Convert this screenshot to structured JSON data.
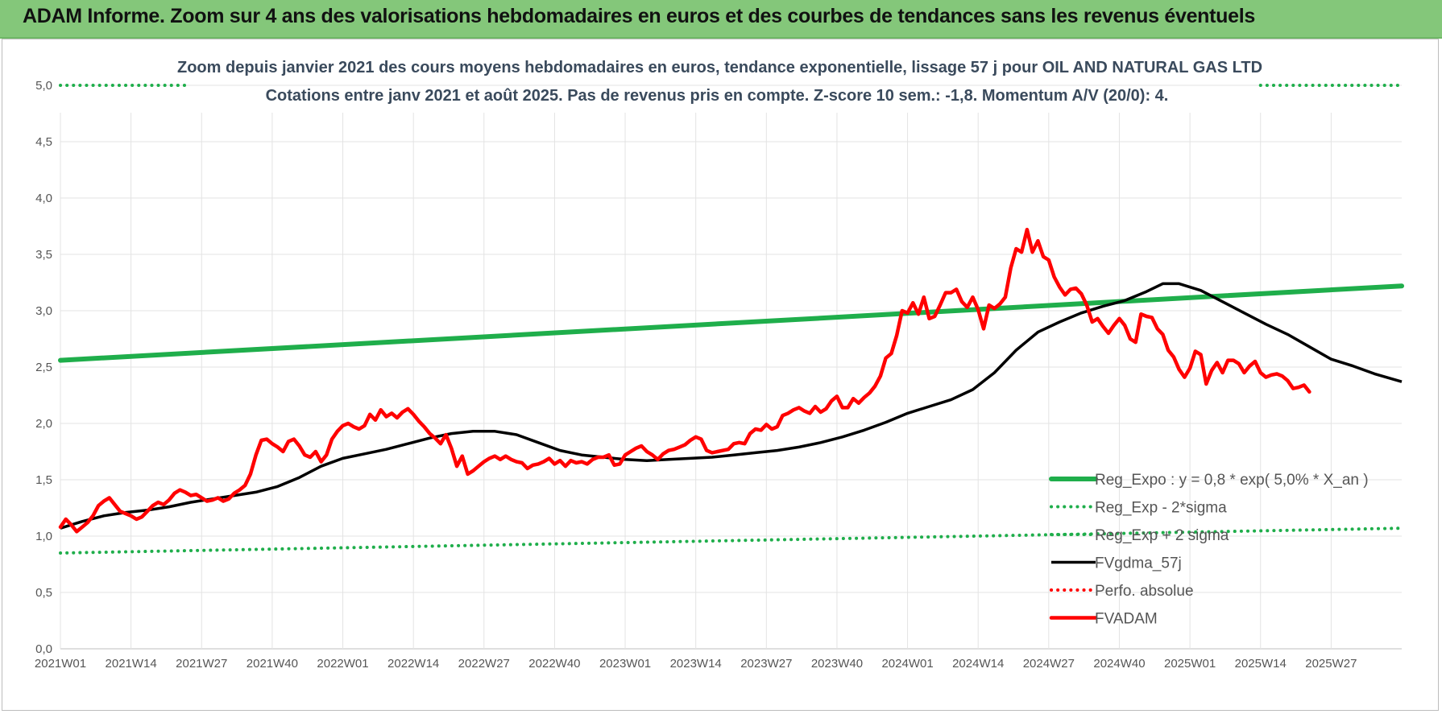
{
  "header": {
    "title": "ADAM Informe. Zoom sur 4 ans des valorisations hebdomadaires en euros et des courbes de tendances sans les revenus éventuels"
  },
  "chart_data": {
    "type": "line",
    "title": "Zoom depuis janvier 2021 des cours moyens hebdomadaires en euros, tendance exponentielle, lissage 57 j pour OIL AND NATURAL GAS LTD",
    "subtitle": "Cotations entre janv 2021 et août 2025.  Pas de revenus pris en compte. Z-score 10 sem.: -1,8. Momentum A/V (20/0): 4.",
    "ylim": [
      0,
      5
    ],
    "y_ticks": [
      "0,0",
      "0,5",
      "1,0",
      "1,5",
      "2,0",
      "2,5",
      "3,0",
      "3,5",
      "4,0",
      "4,5",
      "5,0"
    ],
    "x_ticks": [
      "2021W01",
      "2021W14",
      "2021W27",
      "2021W40",
      "2022W01",
      "2022W14",
      "2022W27",
      "2022W40",
      "2023W01",
      "2023W14",
      "2023W27",
      "2023W40",
      "2024W01",
      "2024W14",
      "2024W27",
      "2024W40",
      "2025W01",
      "2025W14",
      "2025W27"
    ],
    "grid": true,
    "legend_position": "bottom-right",
    "series": [
      {
        "name": "Reg_Expo : y = 0,8 * exp( 5,0% *  X_an )",
        "color": "#1fae4b",
        "style": "solid-thick",
        "points": [
          [
            0,
            2.56
          ],
          [
            247,
            3.22
          ]
        ]
      },
      {
        "name": "Reg_Exp - 2*sigma",
        "color": "#1fae4b",
        "style": "dotted",
        "points": [
          [
            0,
            0.85
          ],
          [
            247,
            1.07
          ]
        ]
      },
      {
        "name": "Reg_Exp + 2 sigma",
        "color": "#1fae4b",
        "style": "dotted",
        "points": [
          [
            0,
            5.0
          ],
          [
            23,
            5.0
          ],
          [
            221,
            5.0
          ],
          [
            247,
            5.0
          ]
        ]
      },
      {
        "name": "FVgdma_57j",
        "color": "#000000",
        "style": "solid",
        "points": [
          [
            0,
            1.07
          ],
          [
            4,
            1.13
          ],
          [
            8,
            1.18
          ],
          [
            12,
            1.21
          ],
          [
            16,
            1.23
          ],
          [
            20,
            1.26
          ],
          [
            24,
            1.3
          ],
          [
            28,
            1.33
          ],
          [
            32,
            1.36
          ],
          [
            36,
            1.39
          ],
          [
            40,
            1.44
          ],
          [
            44,
            1.52
          ],
          [
            48,
            1.62
          ],
          [
            52,
            1.69
          ],
          [
            56,
            1.73
          ],
          [
            60,
            1.77
          ],
          [
            64,
            1.82
          ],
          [
            68,
            1.87
          ],
          [
            72,
            1.91
          ],
          [
            76,
            1.93
          ],
          [
            80,
            1.93
          ],
          [
            84,
            1.9
          ],
          [
            88,
            1.83
          ],
          [
            92,
            1.76
          ],
          [
            96,
            1.72
          ],
          [
            100,
            1.7
          ],
          [
            104,
            1.68
          ],
          [
            108,
            1.67
          ],
          [
            112,
            1.68
          ],
          [
            116,
            1.69
          ],
          [
            120,
            1.7
          ],
          [
            124,
            1.72
          ],
          [
            128,
            1.74
          ],
          [
            132,
            1.76
          ],
          [
            136,
            1.79
          ],
          [
            140,
            1.83
          ],
          [
            144,
            1.88
          ],
          [
            148,
            1.94
          ],
          [
            152,
            2.01
          ],
          [
            156,
            2.09
          ],
          [
            160,
            2.15
          ],
          [
            164,
            2.21
          ],
          [
            168,
            2.3
          ],
          [
            172,
            2.45
          ],
          [
            176,
            2.65
          ],
          [
            180,
            2.81
          ],
          [
            184,
            2.9
          ],
          [
            188,
            2.98
          ],
          [
            192,
            3.04
          ],
          [
            196,
            3.09
          ],
          [
            200,
            3.17
          ],
          [
            203,
            3.24
          ],
          [
            206,
            3.24
          ],
          [
            210,
            3.18
          ],
          [
            214,
            3.08
          ],
          [
            218,
            2.98
          ],
          [
            222,
            2.88
          ],
          [
            226,
            2.79
          ],
          [
            230,
            2.68
          ],
          [
            234,
            2.57
          ],
          [
            238,
            2.51
          ],
          [
            242,
            2.44
          ],
          [
            247,
            2.37
          ]
        ]
      },
      {
        "name": "Perfo. absolue",
        "color": "#ff0000",
        "style": "dotted",
        "points": []
      },
      {
        "name": "FVADAM",
        "color": "#ff0000",
        "style": "solid-thick",
        "points": [
          [
            0,
            1.08
          ],
          [
            1,
            1.15
          ],
          [
            2,
            1.1
          ],
          [
            3,
            1.04
          ],
          [
            4,
            1.08
          ],
          [
            5,
            1.12
          ],
          [
            6,
            1.18
          ],
          [
            7,
            1.27
          ],
          [
            8,
            1.31
          ],
          [
            9,
            1.34
          ],
          [
            10,
            1.28
          ],
          [
            11,
            1.22
          ],
          [
            12,
            1.2
          ],
          [
            13,
            1.18
          ],
          [
            14,
            1.15
          ],
          [
            15,
            1.17
          ],
          [
            16,
            1.22
          ],
          [
            17,
            1.27
          ],
          [
            18,
            1.3
          ],
          [
            19,
            1.28
          ],
          [
            20,
            1.32
          ],
          [
            21,
            1.38
          ],
          [
            22,
            1.41
          ],
          [
            23,
            1.39
          ],
          [
            24,
            1.36
          ],
          [
            25,
            1.37
          ],
          [
            26,
            1.34
          ],
          [
            27,
            1.31
          ],
          [
            28,
            1.32
          ],
          [
            29,
            1.34
          ],
          [
            30,
            1.31
          ],
          [
            31,
            1.33
          ],
          [
            32,
            1.38
          ],
          [
            33,
            1.41
          ],
          [
            34,
            1.45
          ],
          [
            35,
            1.55
          ],
          [
            36,
            1.72
          ],
          [
            37,
            1.85
          ],
          [
            38,
            1.86
          ],
          [
            39,
            1.82
          ],
          [
            40,
            1.79
          ],
          [
            41,
            1.75
          ],
          [
            42,
            1.84
          ],
          [
            43,
            1.86
          ],
          [
            44,
            1.8
          ],
          [
            45,
            1.72
          ],
          [
            46,
            1.7
          ],
          [
            47,
            1.75
          ],
          [
            48,
            1.66
          ],
          [
            49,
            1.72
          ],
          [
            50,
            1.86
          ],
          [
            51,
            1.93
          ],
          [
            52,
            1.98
          ],
          [
            53,
            2.0
          ],
          [
            54,
            1.97
          ],
          [
            55,
            1.95
          ],
          [
            56,
            1.98
          ],
          [
            57,
            2.08
          ],
          [
            58,
            2.03
          ],
          [
            59,
            2.12
          ],
          [
            60,
            2.06
          ],
          [
            61,
            2.09
          ],
          [
            62,
            2.05
          ],
          [
            63,
            2.1
          ],
          [
            64,
            2.13
          ],
          [
            65,
            2.08
          ],
          [
            66,
            2.02
          ],
          [
            67,
            1.97
          ],
          [
            68,
            1.91
          ],
          [
            69,
            1.87
          ],
          [
            70,
            1.82
          ],
          [
            71,
            1.9
          ],
          [
            72,
            1.78
          ],
          [
            73,
            1.62
          ],
          [
            74,
            1.71
          ],
          [
            75,
            1.55
          ],
          [
            76,
            1.58
          ],
          [
            77,
            1.62
          ],
          [
            78,
            1.66
          ],
          [
            79,
            1.69
          ],
          [
            80,
            1.71
          ],
          [
            81,
            1.68
          ],
          [
            82,
            1.71
          ],
          [
            83,
            1.68
          ],
          [
            84,
            1.66
          ],
          [
            85,
            1.65
          ],
          [
            86,
            1.6
          ],
          [
            87,
            1.63
          ],
          [
            88,
            1.64
          ],
          [
            89,
            1.66
          ],
          [
            90,
            1.69
          ],
          [
            91,
            1.64
          ],
          [
            92,
            1.67
          ],
          [
            93,
            1.62
          ],
          [
            94,
            1.67
          ],
          [
            95,
            1.65
          ],
          [
            96,
            1.66
          ],
          [
            97,
            1.64
          ],
          [
            98,
            1.68
          ],
          [
            99,
            1.7
          ],
          [
            100,
            1.7
          ],
          [
            101,
            1.72
          ],
          [
            102,
            1.63
          ],
          [
            103,
            1.64
          ],
          [
            104,
            1.72
          ],
          [
            105,
            1.75
          ],
          [
            106,
            1.78
          ],
          [
            107,
            1.8
          ],
          [
            108,
            1.75
          ],
          [
            109,
            1.72
          ],
          [
            110,
            1.68
          ],
          [
            111,
            1.73
          ],
          [
            112,
            1.76
          ],
          [
            113,
            1.77
          ],
          [
            114,
            1.79
          ],
          [
            115,
            1.81
          ],
          [
            116,
            1.85
          ],
          [
            117,
            1.88
          ],
          [
            118,
            1.86
          ],
          [
            119,
            1.76
          ],
          [
            120,
            1.74
          ],
          [
            121,
            1.75
          ],
          [
            122,
            1.76
          ],
          [
            123,
            1.77
          ],
          [
            124,
            1.82
          ],
          [
            125,
            1.83
          ],
          [
            126,
            1.82
          ],
          [
            127,
            1.91
          ],
          [
            128,
            1.95
          ],
          [
            129,
            1.94
          ],
          [
            130,
            1.99
          ],
          [
            131,
            1.95
          ],
          [
            132,
            1.97
          ],
          [
            133,
            2.07
          ],
          [
            134,
            2.09
          ],
          [
            135,
            2.12
          ],
          [
            136,
            2.14
          ],
          [
            137,
            2.11
          ],
          [
            138,
            2.09
          ],
          [
            139,
            2.15
          ],
          [
            140,
            2.1
          ],
          [
            141,
            2.13
          ],
          [
            142,
            2.2
          ],
          [
            143,
            2.24
          ],
          [
            144,
            2.14
          ],
          [
            145,
            2.14
          ],
          [
            146,
            2.22
          ],
          [
            147,
            2.18
          ],
          [
            148,
            2.23
          ],
          [
            149,
            2.27
          ],
          [
            150,
            2.33
          ],
          [
            151,
            2.42
          ],
          [
            152,
            2.58
          ],
          [
            153,
            2.62
          ],
          [
            154,
            2.78
          ],
          [
            155,
            3.0
          ],
          [
            156,
            2.98
          ],
          [
            157,
            3.07
          ],
          [
            158,
            2.97
          ],
          [
            159,
            3.12
          ],
          [
            160,
            2.93
          ],
          [
            161,
            2.95
          ],
          [
            162,
            3.05
          ],
          [
            163,
            3.16
          ],
          [
            164,
            3.16
          ],
          [
            165,
            3.19
          ],
          [
            166,
            3.08
          ],
          [
            167,
            3.03
          ],
          [
            168,
            3.12
          ],
          [
            169,
            3.01
          ],
          [
            170,
            2.84
          ],
          [
            171,
            3.05
          ],
          [
            172,
            3.02
          ],
          [
            173,
            3.06
          ],
          [
            174,
            3.12
          ],
          [
            175,
            3.38
          ],
          [
            176,
            3.55
          ],
          [
            177,
            3.52
          ],
          [
            178,
            3.72
          ],
          [
            179,
            3.52
          ],
          [
            180,
            3.62
          ],
          [
            181,
            3.48
          ],
          [
            182,
            3.45
          ],
          [
            183,
            3.3
          ],
          [
            184,
            3.21
          ],
          [
            185,
            3.14
          ],
          [
            186,
            3.19
          ],
          [
            187,
            3.2
          ],
          [
            188,
            3.15
          ],
          [
            189,
            3.05
          ],
          [
            190,
            2.9
          ],
          [
            191,
            2.93
          ],
          [
            192,
            2.86
          ],
          [
            193,
            2.8
          ],
          [
            194,
            2.87
          ],
          [
            195,
            2.93
          ],
          [
            196,
            2.87
          ],
          [
            197,
            2.75
          ],
          [
            198,
            2.72
          ],
          [
            199,
            2.97
          ],
          [
            200,
            2.95
          ],
          [
            201,
            2.94
          ],
          [
            202,
            2.84
          ],
          [
            203,
            2.79
          ],
          [
            204,
            2.65
          ],
          [
            205,
            2.59
          ],
          [
            206,
            2.48
          ],
          [
            207,
            2.41
          ],
          [
            208,
            2.49
          ],
          [
            209,
            2.64
          ],
          [
            210,
            2.61
          ],
          [
            211,
            2.35
          ],
          [
            212,
            2.47
          ],
          [
            213,
            2.54
          ],
          [
            214,
            2.45
          ],
          [
            215,
            2.56
          ],
          [
            216,
            2.56
          ],
          [
            217,
            2.53
          ],
          [
            218,
            2.45
          ],
          [
            219,
            2.51
          ],
          [
            220,
            2.55
          ],
          [
            221,
            2.45
          ],
          [
            222,
            2.41
          ],
          [
            223,
            2.43
          ],
          [
            224,
            2.44
          ],
          [
            225,
            2.42
          ],
          [
            226,
            2.38
          ],
          [
            227,
            2.31
          ],
          [
            228,
            2.32
          ],
          [
            229,
            2.34
          ],
          [
            230,
            2.28
          ]
        ]
      }
    ]
  }
}
